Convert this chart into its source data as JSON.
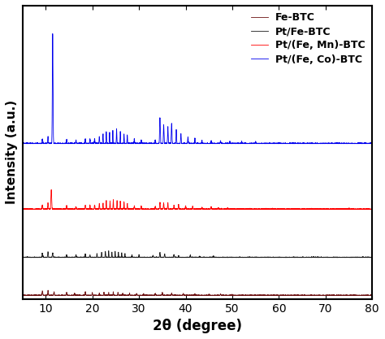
{
  "title": "",
  "xlabel": "2θ (degree)",
  "ylabel": "Intensity (a.u.)",
  "xlim": [
    5,
    80
  ],
  "xticks": [
    10,
    20,
    30,
    40,
    50,
    60,
    70,
    80
  ],
  "legend_labels": [
    "Fe-BTC",
    "Pt/Fe-BTC",
    "Pt/(Fe, Mn)-BTC",
    "Pt/(Fe, Co)-BTC"
  ],
  "colors": [
    "#6B1010",
    "#1a1a1a",
    "#FF0000",
    "#0000EE"
  ],
  "offsets": [
    0.0,
    0.55,
    1.25,
    2.2
  ],
  "background_color": "#ffffff",
  "spine_color": "#000000"
}
